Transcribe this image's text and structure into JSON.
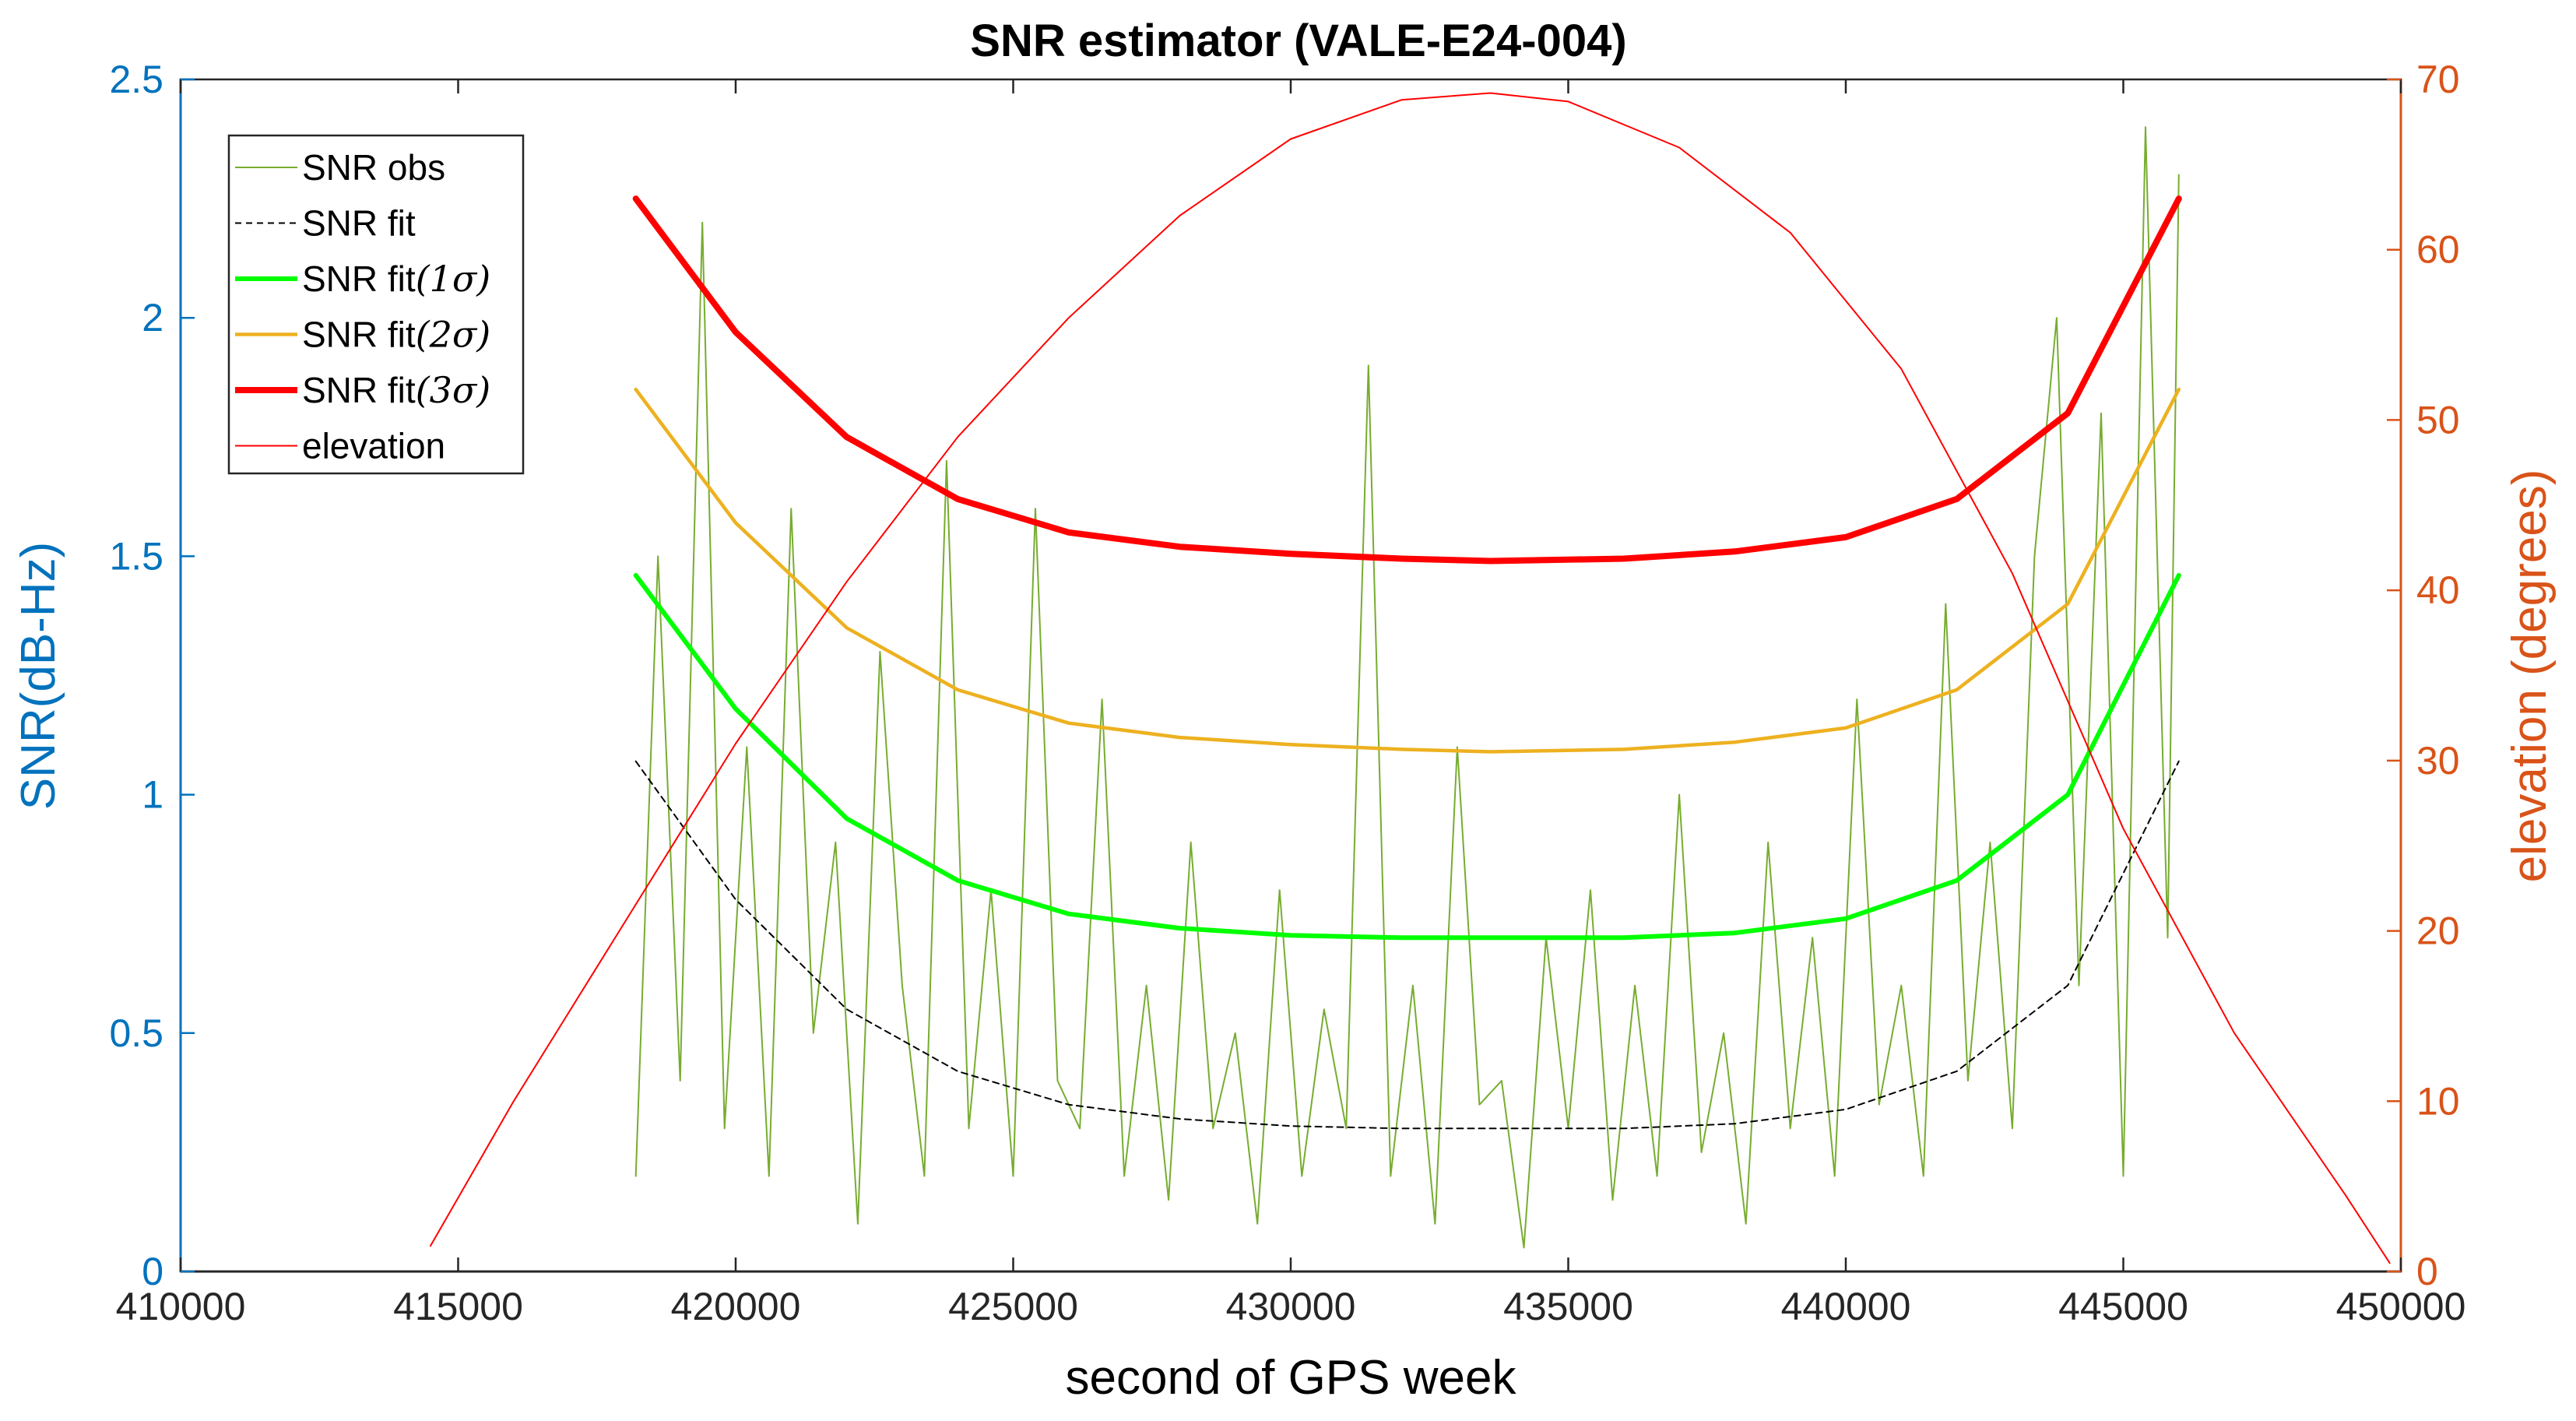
{
  "chart_data": {
    "type": "line",
    "title": "SNR estimator (VALE-E24-004)",
    "xlabel": "second of GPS week",
    "ylabel": "SNR(dB-Hz)",
    "y2label": "elevation (degrees)",
    "xlim": [
      410000,
      450000
    ],
    "ylim": [
      0,
      2.5
    ],
    "y2lim": [
      0,
      70
    ],
    "xticks": [
      410000,
      415000,
      420000,
      425000,
      430000,
      435000,
      440000,
      445000,
      450000
    ],
    "xtick_labels": [
      "410000",
      "415000",
      "420000",
      "425000",
      "430000",
      "435000",
      "440000",
      "445000",
      "450000"
    ],
    "yticks": [
      0,
      0.5,
      1,
      1.5,
      2,
      2.5
    ],
    "ytick_labels": [
      "0",
      "0.5",
      "1",
      "1.5",
      "2",
      "2.5"
    ],
    "y2ticks": [
      0,
      10,
      20,
      30,
      40,
      50,
      60,
      70
    ],
    "y2tick_labels": [
      "0",
      "10",
      "20",
      "30",
      "40",
      "50",
      "60",
      "70"
    ],
    "legend_position": "top-left",
    "colors": {
      "left_axis": "#0072BD",
      "right_axis": "#D95319",
      "snr_obs": "#77AC30",
      "snr_fit": "#000000",
      "fit_1sigma": "#00FF00",
      "fit_2sigma": "#EDB120",
      "fit_3sigma": "#FF0000",
      "elevation": "#FF0000"
    },
    "series": [
      {
        "name": "SNR obs",
        "axis": "left",
        "style": "thin",
        "note": "noisy observations, values estimated from figure",
        "x": [
          418200,
          418600,
          419000,
          419400,
          419800,
          420200,
          420600,
          421000,
          421400,
          421800,
          422200,
          422600,
          423000,
          423400,
          423800,
          424200,
          424600,
          425000,
          425400,
          425800,
          426200,
          426600,
          427000,
          427400,
          427800,
          428200,
          428600,
          429000,
          429400,
          429800,
          430200,
          430600,
          431000,
          431400,
          431800,
          432200,
          432600,
          433000,
          433400,
          433800,
          434200,
          434600,
          435000,
          435400,
          435800,
          436200,
          436600,
          437000,
          437400,
          437800,
          438200,
          438600,
          439000,
          439400,
          439800,
          440200,
          440600,
          441000,
          441400,
          441800,
          442200,
          442600,
          443000,
          443400,
          443800,
          444200,
          444600,
          445000,
          445400,
          445800,
          446000
        ],
        "values": [
          0.2,
          1.5,
          0.4,
          2.2,
          0.3,
          1.1,
          0.2,
          1.6,
          0.5,
          0.9,
          0.1,
          1.3,
          0.6,
          0.2,
          1.7,
          0.3,
          0.8,
          0.2,
          1.6,
          0.4,
          0.3,
          1.2,
          0.2,
          0.6,
          0.15,
          0.9,
          0.3,
          0.5,
          0.1,
          0.8,
          0.2,
          0.55,
          0.3,
          1.9,
          0.2,
          0.6,
          0.1,
          1.1,
          0.35,
          0.4,
          0.05,
          0.7,
          0.3,
          0.8,
          0.15,
          0.6,
          0.2,
          1.0,
          0.25,
          0.5,
          0.1,
          0.9,
          0.3,
          0.7,
          0.2,
          1.2,
          0.35,
          0.6,
          0.2,
          1.4,
          0.4,
          0.9,
          0.3,
          1.5,
          2.0,
          0.6,
          1.8,
          0.2,
          2.4,
          0.7,
          2.3
        ]
      },
      {
        "name": "SNR fit",
        "axis": "left",
        "style": "dashed",
        "x": [
          418200,
          420000,
          422000,
          424000,
          426000,
          428000,
          430000,
          432000,
          433600,
          436000,
          438000,
          440000,
          442000,
          444000,
          446000
        ],
        "values": [
          1.07,
          0.78,
          0.55,
          0.42,
          0.35,
          0.32,
          0.305,
          0.3,
          0.3,
          0.3,
          0.31,
          0.34,
          0.42,
          0.6,
          1.07
        ]
      },
      {
        "name": "SNR fit(1σ)",
        "axis": "left",
        "style": "thick",
        "x": [
          418200,
          420000,
          422000,
          424000,
          426000,
          428000,
          430000,
          432000,
          433600,
          436000,
          438000,
          440000,
          442000,
          444000,
          446000
        ],
        "values": [
          1.46,
          1.18,
          0.95,
          0.82,
          0.75,
          0.72,
          0.705,
          0.7,
          0.7,
          0.7,
          0.71,
          0.74,
          0.82,
          1.0,
          1.46
        ]
      },
      {
        "name": "SNR fit(2σ)",
        "axis": "left",
        "style": "medium",
        "x": [
          418200,
          420000,
          422000,
          424000,
          426000,
          428000,
          430000,
          432000,
          433600,
          436000,
          438000,
          440000,
          442000,
          444000,
          446000
        ],
        "values": [
          1.85,
          1.57,
          1.35,
          1.22,
          1.15,
          1.12,
          1.105,
          1.095,
          1.09,
          1.095,
          1.11,
          1.14,
          1.22,
          1.4,
          1.85
        ]
      },
      {
        "name": "SNR fit(3σ)",
        "axis": "left",
        "style": "thick",
        "x": [
          418200,
          420000,
          422000,
          424000,
          426000,
          428000,
          430000,
          432000,
          433600,
          436000,
          438000,
          440000,
          442000,
          444000,
          446000
        ],
        "values": [
          2.25,
          1.97,
          1.75,
          1.62,
          1.55,
          1.52,
          1.505,
          1.495,
          1.49,
          1.495,
          1.51,
          1.54,
          1.62,
          1.8,
          2.25
        ]
      },
      {
        "name": "elevation",
        "axis": "right",
        "style": "thin",
        "x": [
          414500,
          416000,
          418000,
          420000,
          422000,
          424000,
          426000,
          428000,
          430000,
          432000,
          433600,
          435000,
          437000,
          439000,
          441000,
          443000,
          445000,
          447000,
          449000,
          449800
        ],
        "values": [
          1.5,
          10,
          20.5,
          31,
          40.5,
          49,
          56,
          62,
          66.5,
          68.8,
          69.2,
          68.7,
          66,
          61,
          53,
          41,
          26,
          14,
          4.5,
          0.5
        ]
      }
    ],
    "legend": {
      "entries": [
        {
          "label": "SNR obs",
          "sigma": ""
        },
        {
          "label": "SNR fit",
          "sigma": ""
        },
        {
          "label": "SNR fit",
          "sigma": "(1σ)"
        },
        {
          "label": "SNR fit",
          "sigma": "(2σ)"
        },
        {
          "label": "SNR fit",
          "sigma": "(3σ)"
        },
        {
          "label": "elevation",
          "sigma": ""
        }
      ]
    }
  }
}
